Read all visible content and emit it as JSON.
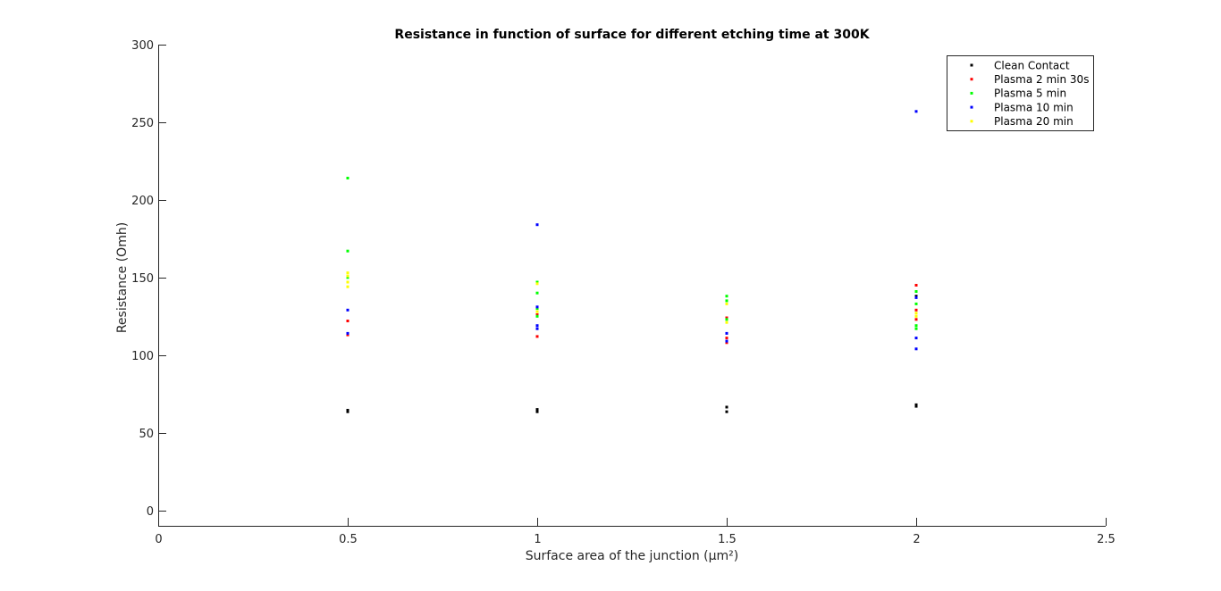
{
  "chart_data": {
    "type": "scatter",
    "title": "Resistance in function of surface for different etching time at 300K",
    "xlabel": "Surface area of the junction (µm²)",
    "ylabel": "Resistance (Omh)",
    "xlim": [
      0,
      2.5
    ],
    "ylim": [
      -10,
      300
    ],
    "x_ticks": [
      0,
      0.5,
      1,
      1.5,
      2,
      2.5
    ],
    "x_tick_labels": [
      "0",
      "0.5",
      "1",
      "1.5",
      "2",
      "2.5"
    ],
    "y_ticks": [
      0,
      50,
      100,
      150,
      200,
      250,
      300
    ],
    "y_tick_labels": [
      "0",
      "50",
      "100",
      "150",
      "200",
      "250",
      "300"
    ],
    "grid": false,
    "legend_position": "top-right",
    "series": [
      {
        "name": "Clean Contact",
        "color": "#000000",
        "points": [
          [
            0.5,
            63.5
          ],
          [
            0.5,
            64.5
          ],
          [
            1,
            63.5
          ],
          [
            1,
            65
          ],
          [
            1.5,
            63.5
          ],
          [
            1.5,
            66.5
          ],
          [
            2,
            67
          ],
          [
            2,
            68
          ],
          [
            2,
            138
          ]
        ]
      },
      {
        "name": "Plasma 2 min 30s",
        "color": "#ff0000",
        "points": [
          [
            0.5,
            122
          ],
          [
            0.5,
            113
          ],
          [
            1,
            112
          ],
          [
            1,
            126
          ],
          [
            1.5,
            108
          ],
          [
            1.5,
            111
          ],
          [
            1.5,
            124
          ],
          [
            2,
            145
          ],
          [
            2,
            129
          ],
          [
            2,
            123
          ]
        ]
      },
      {
        "name": "Plasma 5 min",
        "color": "#00ff00",
        "points": [
          [
            0.5,
            214
          ],
          [
            0.5,
            167
          ],
          [
            0.5,
            150
          ],
          [
            1,
            147
          ],
          [
            1,
            140
          ],
          [
            1,
            130
          ],
          [
            1,
            125
          ],
          [
            1.5,
            138
          ],
          [
            1.5,
            135
          ],
          [
            1.5,
            123
          ],
          [
            2,
            141
          ],
          [
            2,
            133
          ],
          [
            2,
            119
          ],
          [
            2,
            117
          ]
        ]
      },
      {
        "name": "Plasma 10 min",
        "color": "#0000ff",
        "points": [
          [
            0.5,
            129
          ],
          [
            0.5,
            114
          ],
          [
            1,
            184
          ],
          [
            1,
            131
          ],
          [
            1,
            119
          ],
          [
            1,
            117
          ],
          [
            1.5,
            114
          ],
          [
            1.5,
            109
          ],
          [
            2,
            257
          ],
          [
            2,
            137
          ],
          [
            2,
            111
          ],
          [
            2,
            104
          ]
        ]
      },
      {
        "name": "Plasma 20 min",
        "color": "#ffff00",
        "points": [
          [
            0.5,
            153
          ],
          [
            0.5,
            151
          ],
          [
            0.5,
            147
          ],
          [
            0.5,
            144
          ],
          [
            1,
            146
          ],
          [
            1,
            128
          ],
          [
            1.5,
            133
          ],
          [
            1.5,
            121
          ],
          [
            2,
            127
          ],
          [
            2,
            125
          ]
        ]
      }
    ]
  }
}
